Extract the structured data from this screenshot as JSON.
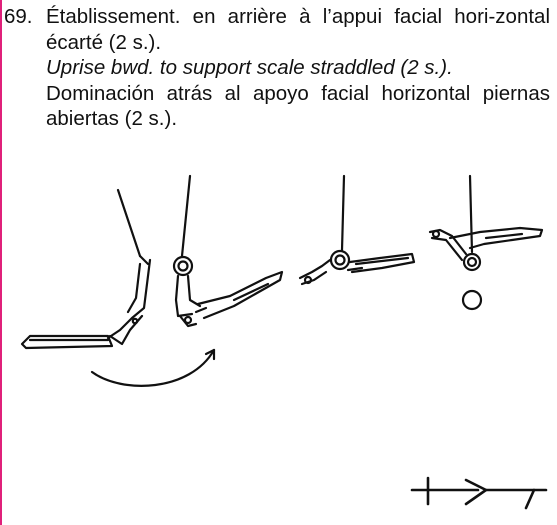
{
  "entry": {
    "number": "69.",
    "french": "Établissement. en arrière à l’appui facial hori-zontal écarté (2 s.).",
    "english": "Uprise bwd. to support scale straddled (2 s.).",
    "spanish": "Dominación atrás al apoyo facial horizontal piernas abiertas (2 s.)."
  },
  "colors": {
    "ink": "#111111",
    "left_edge": "#e0207a"
  },
  "figure": {
    "icons": [
      "gymnast-phase-1",
      "gymnast-phase-2",
      "gymnast-phase-3",
      "gymnast-phase-4",
      "rotation-arrow",
      "dismount-symbol"
    ]
  }
}
